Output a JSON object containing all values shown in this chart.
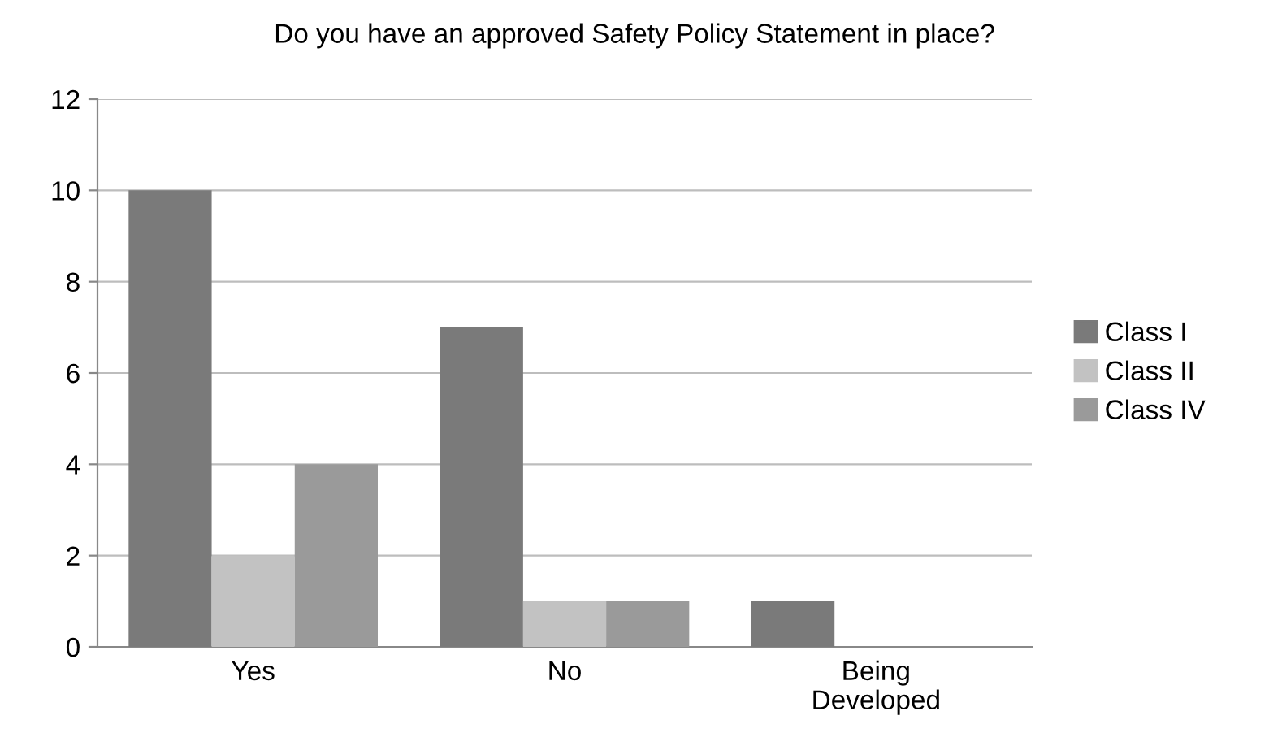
{
  "chart_data": {
    "type": "bar",
    "title": "Do you have an approved Safety Policy Statement in place?",
    "categories": [
      "Yes",
      "No",
      "Being\nDeveloped"
    ],
    "series": [
      {
        "name": "Class I",
        "color": "#7a7a7a",
        "values": [
          10,
          7,
          1
        ]
      },
      {
        "name": "Class II",
        "color": "#c2c2c2",
        "values": [
          2,
          1,
          0
        ]
      },
      {
        "name": "Class IV",
        "color": "#9a9a9a",
        "values": [
          4,
          1,
          0
        ]
      }
    ],
    "ylim": [
      0,
      12
    ],
    "yticks": [
      0,
      2,
      4,
      6,
      8,
      10,
      12
    ],
    "grid": "y",
    "legend": "right"
  }
}
